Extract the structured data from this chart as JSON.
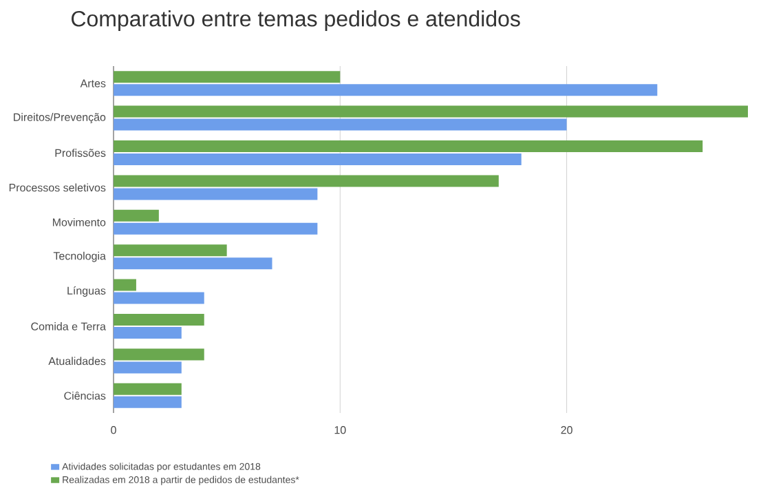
{
  "chart_data": {
    "type": "bar",
    "orientation": "horizontal",
    "title": "Comparativo entre temas pedidos e atendidos",
    "categories": [
      "Artes",
      "Direitos/Prevenção",
      "Profissões",
      "Processos seletivos",
      "Movimento",
      "Tecnologia",
      "Línguas",
      "Comida e Terra",
      "Atualidades",
      "Ciências"
    ],
    "series": [
      {
        "name": "Atividades solicitadas por estudantes em 2018",
        "color": "#6d9eeb",
        "values": [
          24,
          20,
          18,
          9,
          9,
          7,
          4,
          3,
          3,
          3
        ]
      },
      {
        "name": "Realizadas em 2018 a partir de pedidos de estudantes*",
        "color": "#6aa84f",
        "values": [
          10,
          28,
          26,
          17,
          2,
          5,
          1,
          4,
          4,
          3
        ]
      }
    ],
    "xlim": [
      0,
      28
    ],
    "xticks": [
      0,
      10,
      20
    ],
    "grid": "x",
    "legend": "bottom left"
  }
}
